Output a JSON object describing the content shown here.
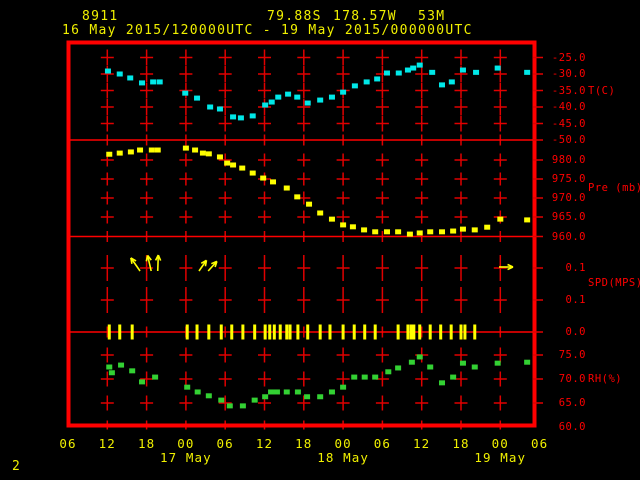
{
  "header": {
    "station_id": "8911",
    "latitude": "79.88S",
    "longitude": "178.57W",
    "elevation": "53M",
    "period": "16 May 2015/120000UTC - 19 May 2015/000000UTC"
  },
  "footer": {
    "page_number": "2"
  },
  "colors": {
    "background": "#000000",
    "frame": "#ff0000",
    "grid": "#e00000",
    "axis_label": "#ff0000",
    "header_text": "#f0f000",
    "temperature": "#00e8e8",
    "pressure": "#ffff00",
    "wind": "#ffff00",
    "humidity": "#33d133"
  },
  "xaxis": {
    "hour_tick_labels": [
      "06",
      "12",
      "18",
      "00",
      "06",
      "12",
      "18",
      "00",
      "06",
      "12",
      "18",
      "00",
      "06"
    ],
    "date_labels": [
      {
        "label": "17 May",
        "tick_index": 3
      },
      {
        "label": "18 May",
        "tick_index": 7
      },
      {
        "label": "19 May",
        "tick_index": 11
      }
    ]
  },
  "chart_data": [
    {
      "type": "scatter",
      "name": "temperature",
      "ylabel": "T(C)",
      "yticks": [
        "-25.0",
        "-30.0",
        "-35.0",
        "-40.0",
        "-45.0",
        "-50.0"
      ],
      "ylim": [
        -50,
        -20
      ],
      "x_unit": "hours since 16 May 2015 0600UTC",
      "points": [
        [
          6.1,
          -29.1
        ],
        [
          7.9,
          -30.0
        ],
        [
          9.5,
          -31.2
        ],
        [
          11.3,
          -32.7
        ],
        [
          13.0,
          -32.4
        ],
        [
          14.0,
          -32.4
        ],
        [
          17.9,
          -35.8
        ],
        [
          19.7,
          -37.3
        ],
        [
          21.7,
          -40.0
        ],
        [
          23.2,
          -40.6
        ],
        [
          25.2,
          -43.0
        ],
        [
          26.4,
          -43.3
        ],
        [
          28.2,
          -42.7
        ],
        [
          30.1,
          -39.4
        ],
        [
          31.1,
          -38.5
        ],
        [
          32.1,
          -37.0
        ],
        [
          33.6,
          -36.1
        ],
        [
          35.0,
          -37.0
        ],
        [
          36.6,
          -38.8
        ],
        [
          38.5,
          -37.9
        ],
        [
          40.3,
          -37.0
        ],
        [
          42.0,
          -35.5
        ],
        [
          43.8,
          -33.6
        ],
        [
          45.6,
          -32.4
        ],
        [
          47.2,
          -31.5
        ],
        [
          48.7,
          -29.7
        ],
        [
          50.5,
          -29.7
        ],
        [
          51.9,
          -28.8
        ],
        [
          52.7,
          -28.2
        ],
        [
          53.7,
          -27.3
        ],
        [
          55.6,
          -29.5
        ],
        [
          57.1,
          -33.3
        ],
        [
          58.6,
          -32.4
        ],
        [
          60.3,
          -28.8
        ],
        [
          62.3,
          -29.5
        ],
        [
          65.6,
          -28.2
        ],
        [
          70.1,
          -29.5
        ]
      ]
    },
    {
      "type": "scatter",
      "name": "pressure",
      "ylabel": "Pre (mb)",
      "yticks": [
        "980.0",
        "975.0",
        "970.0",
        "965.0",
        "960.0"
      ],
      "ylim": [
        958,
        984
      ],
      "x_unit": "hours since 16 May 2015 0600UTC",
      "points": [
        [
          6.3,
          981.5
        ],
        [
          7.9,
          981.8
        ],
        [
          9.6,
          982.1
        ],
        [
          11.0,
          982.6
        ],
        [
          12.8,
          982.6
        ],
        [
          13.7,
          982.6
        ],
        [
          18.0,
          983.1
        ],
        [
          19.4,
          982.6
        ],
        [
          20.6,
          981.8
        ],
        [
          21.5,
          981.6
        ],
        [
          23.2,
          980.8
        ],
        [
          24.3,
          979.2
        ],
        [
          25.2,
          978.7
        ],
        [
          26.6,
          977.9
        ],
        [
          28.2,
          976.6
        ],
        [
          29.8,
          975.3
        ],
        [
          31.3,
          974.3
        ],
        [
          33.4,
          972.7
        ],
        [
          35.0,
          970.4
        ],
        [
          36.8,
          968.5
        ],
        [
          38.5,
          966.2
        ],
        [
          40.3,
          964.6
        ],
        [
          42.0,
          963.1
        ],
        [
          43.5,
          962.6
        ],
        [
          45.2,
          961.8
        ],
        [
          46.9,
          961.3
        ],
        [
          48.7,
          961.3
        ],
        [
          50.4,
          961.3
        ],
        [
          52.2,
          960.7
        ],
        [
          53.7,
          961.0
        ],
        [
          55.3,
          961.3
        ],
        [
          57.1,
          961.3
        ],
        [
          58.8,
          961.5
        ],
        [
          60.3,
          962.0
        ],
        [
          62.1,
          961.8
        ],
        [
          64.0,
          962.5
        ],
        [
          66.0,
          964.6
        ],
        [
          70.1,
          964.4
        ]
      ]
    },
    {
      "type": "wind",
      "name": "wind_speed",
      "ylabel": "SPD(MPS)",
      "yticks": [
        "0.1",
        "0.1",
        "0.0"
      ],
      "x_unit": "hours since 16 May 2015 0600UTC",
      "arrows": [
        {
          "hour": 11.0,
          "dir_deg": 125,
          "len": 16
        },
        {
          "hour": 12.7,
          "dir_deg": 103,
          "len": 16
        },
        {
          "hour": 13.7,
          "dir_deg": 88,
          "len": 16
        },
        {
          "hour": 20.0,
          "dir_deg": 55,
          "len": 13
        },
        {
          "hour": 21.4,
          "dir_deg": 48,
          "len": 13
        },
        {
          "hour": 65.8,
          "dir_deg": 0,
          "len": 14
        }
      ],
      "obs_tick_hours": [
        6.3,
        7.9,
        9.8,
        18.2,
        19.7,
        21.5,
        23.4,
        25.0,
        26.7,
        28.5,
        30.1,
        30.8,
        31.5,
        32.4,
        33.4,
        33.9,
        35.1,
        36.6,
        38.5,
        40.0,
        42.0,
        43.7,
        45.3,
        46.9,
        50.4,
        51.9,
        52.4,
        52.8,
        53.7,
        55.3,
        56.9,
        58.5,
        60.0,
        60.6,
        62.1
      ]
    },
    {
      "type": "scatter",
      "name": "relative_humidity",
      "ylabel": "RH(%)",
      "yticks": [
        "75.0",
        "70.0",
        "65.0",
        "60.0"
      ],
      "ylim": [
        60,
        77
      ],
      "x_unit": "hours since 16 May 2015 0600UTC",
      "points": [
        [
          6.3,
          72.5
        ],
        [
          6.7,
          71.3
        ],
        [
          8.1,
          72.9
        ],
        [
          9.8,
          71.7
        ],
        [
          11.3,
          69.4
        ],
        [
          13.3,
          70.4
        ],
        [
          18.2,
          68.3
        ],
        [
          19.8,
          67.3
        ],
        [
          21.5,
          66.5
        ],
        [
          23.4,
          65.6
        ],
        [
          24.7,
          64.4
        ],
        [
          26.7,
          64.4
        ],
        [
          28.5,
          65.6
        ],
        [
          30.1,
          66.3
        ],
        [
          31.0,
          67.3
        ],
        [
          31.9,
          67.3
        ],
        [
          33.4,
          67.3
        ],
        [
          35.1,
          67.3
        ],
        [
          36.5,
          66.3
        ],
        [
          38.5,
          66.3
        ],
        [
          40.3,
          67.3
        ],
        [
          42.0,
          68.3
        ],
        [
          43.7,
          70.4
        ],
        [
          45.3,
          70.4
        ],
        [
          46.9,
          70.4
        ],
        [
          48.9,
          71.5
        ],
        [
          50.4,
          72.3
        ],
        [
          52.5,
          73.5
        ],
        [
          53.7,
          74.6
        ],
        [
          55.3,
          72.5
        ],
        [
          57.1,
          69.2
        ],
        [
          58.8,
          70.4
        ],
        [
          60.3,
          73.3
        ],
        [
          62.1,
          72.5
        ],
        [
          65.6,
          73.3
        ],
        [
          70.1,
          73.5
        ]
      ]
    }
  ]
}
